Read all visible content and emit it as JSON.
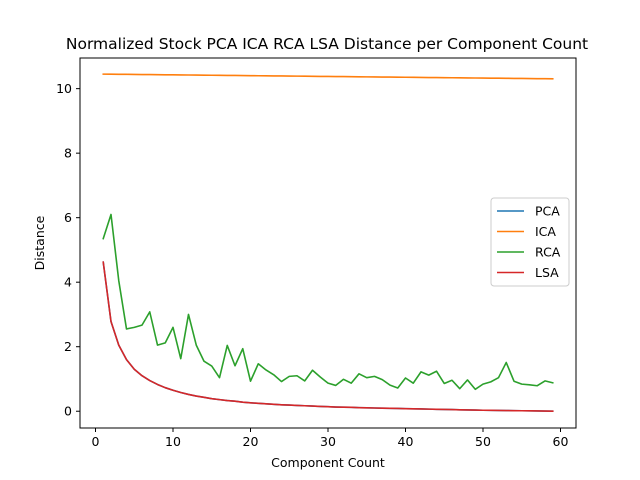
{
  "chart_data": {
    "type": "line",
    "title": "Normalized Stock PCA ICA RCA LSA Distance per Component Count",
    "xlabel": "Component Count",
    "ylabel": "Distance",
    "xlim": [
      -2,
      62
    ],
    "ylim": [
      -0.52,
      10.95
    ],
    "xticks": [
      0,
      10,
      20,
      30,
      40,
      50,
      60
    ],
    "yticks": [
      0,
      2,
      4,
      6,
      8,
      10
    ],
    "legend_position": "center-right",
    "grid": false,
    "x": [
      1,
      2,
      3,
      4,
      5,
      6,
      7,
      8,
      9,
      10,
      11,
      12,
      13,
      14,
      15,
      16,
      17,
      18,
      19,
      20,
      21,
      22,
      23,
      24,
      25,
      26,
      27,
      28,
      29,
      30,
      31,
      32,
      33,
      34,
      35,
      36,
      37,
      38,
      39,
      40,
      41,
      42,
      43,
      44,
      45,
      46,
      47,
      48,
      49,
      50,
      51,
      52,
      53,
      54,
      55,
      56,
      57,
      58,
      59
    ],
    "series": [
      {
        "name": "PCA",
        "color": "#1f77b4",
        "values": [
          4.62,
          2.78,
          2.05,
          1.6,
          1.3,
          1.1,
          0.95,
          0.83,
          0.73,
          0.65,
          0.58,
          0.52,
          0.47,
          0.43,
          0.39,
          0.36,
          0.33,
          0.31,
          0.28,
          0.26,
          0.245,
          0.23,
          0.215,
          0.2,
          0.19,
          0.18,
          0.17,
          0.16,
          0.15,
          0.14,
          0.13,
          0.125,
          0.12,
          0.11,
          0.105,
          0.1,
          0.095,
          0.09,
          0.085,
          0.08,
          0.075,
          0.07,
          0.065,
          0.06,
          0.055,
          0.05,
          0.045,
          0.04,
          0.035,
          0.03,
          0.027,
          0.024,
          0.021,
          0.018,
          0.015,
          0.012,
          0.009,
          0.006,
          0.003
        ]
      },
      {
        "name": "ICA",
        "color": "#ff7f0e",
        "values": [
          10.45,
          10.448,
          10.445,
          10.443,
          10.44,
          10.438,
          10.435,
          10.433,
          10.43,
          10.428,
          10.425,
          10.423,
          10.42,
          10.418,
          10.415,
          10.413,
          10.41,
          10.408,
          10.405,
          10.403,
          10.4,
          10.398,
          10.395,
          10.393,
          10.39,
          10.388,
          10.385,
          10.383,
          10.38,
          10.378,
          10.375,
          10.373,
          10.37,
          10.368,
          10.365,
          10.363,
          10.36,
          10.358,
          10.355,
          10.353,
          10.35,
          10.348,
          10.345,
          10.343,
          10.34,
          10.338,
          10.335,
          10.333,
          10.33,
          10.328,
          10.325,
          10.323,
          10.32,
          10.318,
          10.315,
          10.313,
          10.31,
          10.308,
          10.305
        ]
      },
      {
        "name": "RCA",
        "color": "#2ca02c",
        "values": [
          5.35,
          6.1,
          4.05,
          2.55,
          2.6,
          2.67,
          3.08,
          2.05,
          2.12,
          2.6,
          1.63,
          3.0,
          2.05,
          1.55,
          1.4,
          1.04,
          2.04,
          1.41,
          1.94,
          0.93,
          1.47,
          1.28,
          1.13,
          0.92,
          1.08,
          1.1,
          0.94,
          1.27,
          1.06,
          0.87,
          0.8,
          0.99,
          0.87,
          1.16,
          1.04,
          1.08,
          0.98,
          0.81,
          0.72,
          1.03,
          0.87,
          1.22,
          1.12,
          1.24,
          0.86,
          0.96,
          0.7,
          0.97,
          0.68,
          0.84,
          0.91,
          1.04,
          1.51,
          0.93,
          0.84,
          0.82,
          0.79,
          0.94,
          0.88
        ]
      },
      {
        "name": "LSA",
        "color": "#d62728",
        "values": [
          4.62,
          2.78,
          2.05,
          1.6,
          1.3,
          1.1,
          0.95,
          0.83,
          0.73,
          0.65,
          0.58,
          0.52,
          0.47,
          0.43,
          0.39,
          0.36,
          0.33,
          0.31,
          0.28,
          0.26,
          0.245,
          0.23,
          0.215,
          0.2,
          0.19,
          0.18,
          0.17,
          0.16,
          0.15,
          0.14,
          0.13,
          0.125,
          0.12,
          0.11,
          0.105,
          0.1,
          0.095,
          0.09,
          0.085,
          0.08,
          0.075,
          0.07,
          0.065,
          0.06,
          0.055,
          0.05,
          0.045,
          0.04,
          0.035,
          0.03,
          0.027,
          0.024,
          0.021,
          0.018,
          0.015,
          0.012,
          0.009,
          0.006,
          0.003
        ]
      }
    ]
  }
}
